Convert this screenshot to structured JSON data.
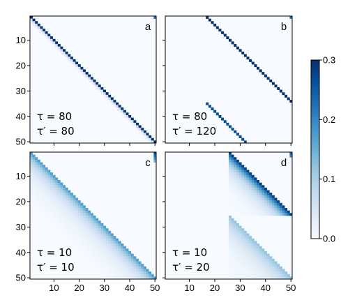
{
  "chart_data": [
    {
      "type": "heatmap",
      "panel_label": "a",
      "annotation": [
        "τ = 80",
        "τ′ = 80"
      ],
      "matrix_size": 50,
      "y_ticks": [
        "10",
        "20",
        "30",
        "40",
        "50"
      ],
      "x_ticks": [],
      "bands": [
        {
          "row_start": 1,
          "row_end": 50,
          "offset": 0,
          "value": 0.3,
          "falloff": 0.2
        }
      ],
      "corner_cells": [
        {
          "row": 1,
          "col": 50,
          "value": 0.22
        }
      ]
    },
    {
      "type": "heatmap",
      "panel_label": "b",
      "annotation": [
        "τ = 80",
        "τ′ = 120"
      ],
      "matrix_size": 50,
      "y_ticks": [],
      "x_ticks": [],
      "bands": [
        {
          "row_start": 1,
          "row_end": 34,
          "offset": 16,
          "value": 0.3,
          "falloff": 0.0
        },
        {
          "row_start": 35,
          "row_end": 50,
          "offset": -18,
          "value": 0.27,
          "falloff": 0.0
        }
      ],
      "corner_cells": [
        {
          "row": 1,
          "col": 50,
          "value": 0.22
        }
      ]
    },
    {
      "type": "heatmap",
      "panel_label": "c",
      "annotation": [
        "τ = 10",
        "τ′ = 10"
      ],
      "matrix_size": 50,
      "y_ticks": [
        "10",
        "20",
        "30",
        "40",
        "50"
      ],
      "x_ticks": [
        "10",
        "20",
        "30",
        "40",
        "50"
      ],
      "bands": [
        {
          "row_start": 1,
          "row_end": 50,
          "offset": 0,
          "value": 0.17,
          "falloff": 0.82
        }
      ],
      "corner_cells": [
        {
          "row": 1,
          "col": 50,
          "value": 0.26
        },
        {
          "row": 2,
          "col": 50,
          "value": 0.22
        },
        {
          "row": 3,
          "col": 50,
          "value": 0.18
        },
        {
          "row": 4,
          "col": 50,
          "value": 0.14
        }
      ]
    },
    {
      "type": "heatmap",
      "panel_label": "d",
      "annotation": [
        "τ = 10",
        "τ′ = 20"
      ],
      "matrix_size": 50,
      "y_ticks": [],
      "x_ticks": [
        "10",
        "20",
        "30",
        "40",
        "50"
      ],
      "bands": [
        {
          "row_start": 1,
          "row_end": 25,
          "offset": 25,
          "value": 0.28,
          "falloff": 0.8,
          "col_min": 26
        },
        {
          "row_start": 26,
          "row_end": 50,
          "offset": 0,
          "value": 0.12,
          "falloff": 0.86,
          "col_min": 26
        }
      ],
      "corner_cells": [
        {
          "row": 1,
          "col": 50,
          "value": 0.24
        },
        {
          "row": 2,
          "col": 50,
          "value": 0.2
        }
      ]
    }
  ],
  "colorbar": {
    "min": 0.0,
    "max": 0.3,
    "ticks": [
      "0.0",
      "0.1",
      "0.2",
      "0.3"
    ],
    "colors": [
      "#f7fbff",
      "#deebf7",
      "#c6dbef",
      "#9ecae1",
      "#6baed6",
      "#4292c6",
      "#2171b5",
      "#08519c",
      "#08306b"
    ]
  }
}
